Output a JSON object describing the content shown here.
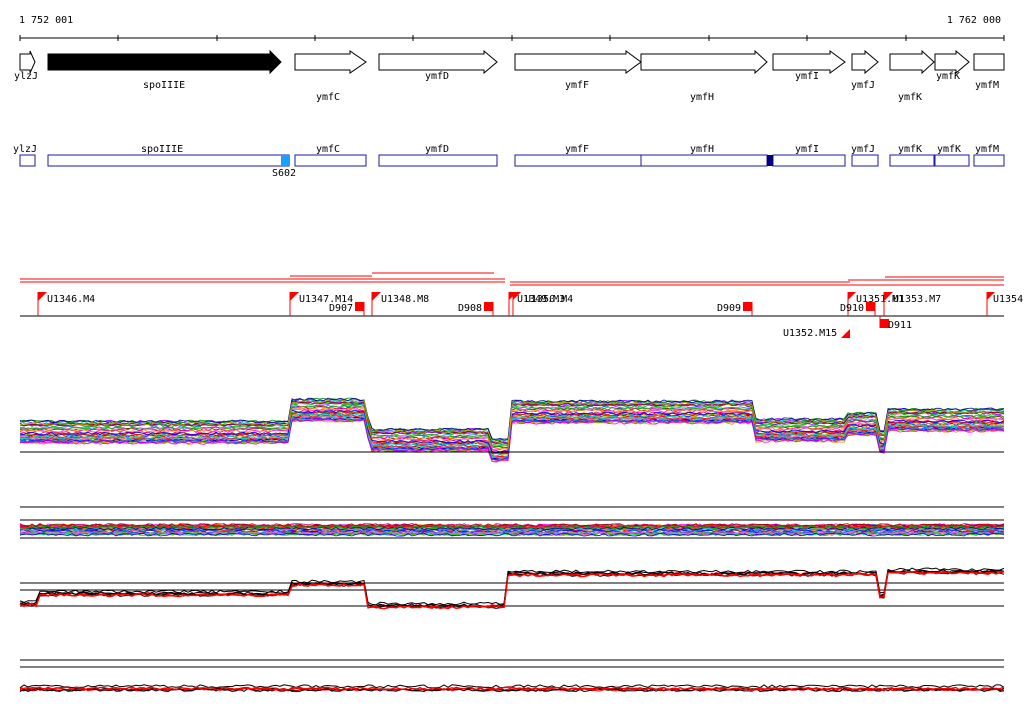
{
  "coords": {
    "start": "1 752 001",
    "end": "1 762 000"
  },
  "genes": [
    {
      "name": "ylzJ",
      "filled": false
    },
    {
      "name": "spoIIIE",
      "filled": true
    },
    {
      "name": "ymfC",
      "filled": false
    },
    {
      "name": "ymfD",
      "filled": false
    },
    {
      "name": "ymfF",
      "filled": false
    },
    {
      "name": "ymfH",
      "filled": false
    },
    {
      "name": "ymfI",
      "filled": false
    },
    {
      "name": "ymfJ",
      "filled": false
    },
    {
      "name": "ymfK",
      "filled": false
    },
    {
      "name": "ymfK",
      "filled": false
    },
    {
      "name": "ymfM",
      "filled": false
    }
  ],
  "boxes": [
    {
      "name": "ylzJ"
    },
    {
      "name": "spoIIIE"
    },
    {
      "name": "ymfC"
    },
    {
      "name": "ymfD"
    },
    {
      "name": "ymfF"
    },
    {
      "name": "ymfH"
    },
    {
      "name": "ymfI"
    },
    {
      "name": "ymfJ"
    },
    {
      "name": "ymfK"
    },
    {
      "name": "ymfK"
    },
    {
      "name": "ymfM"
    }
  ],
  "box_marker_label": "S602",
  "box_marker_colors": [
    "#1a9fff",
    "#000080"
  ],
  "upstream_flags": [
    "U1346.M4",
    "U1347.M14",
    "U1348.M8",
    "U1349.M3",
    "U1350.M4",
    "U1351.M1",
    "U1353.M7",
    "U1354",
    "U1352.M15"
  ],
  "downstream_flags": [
    "D907",
    "D908",
    "D909",
    "D910",
    "D911"
  ],
  "colors": {
    "flag": "#ff0000",
    "box_stroke": "#1a1aa6",
    "axis": "#000000",
    "red_trace": "#ff0000"
  }
}
